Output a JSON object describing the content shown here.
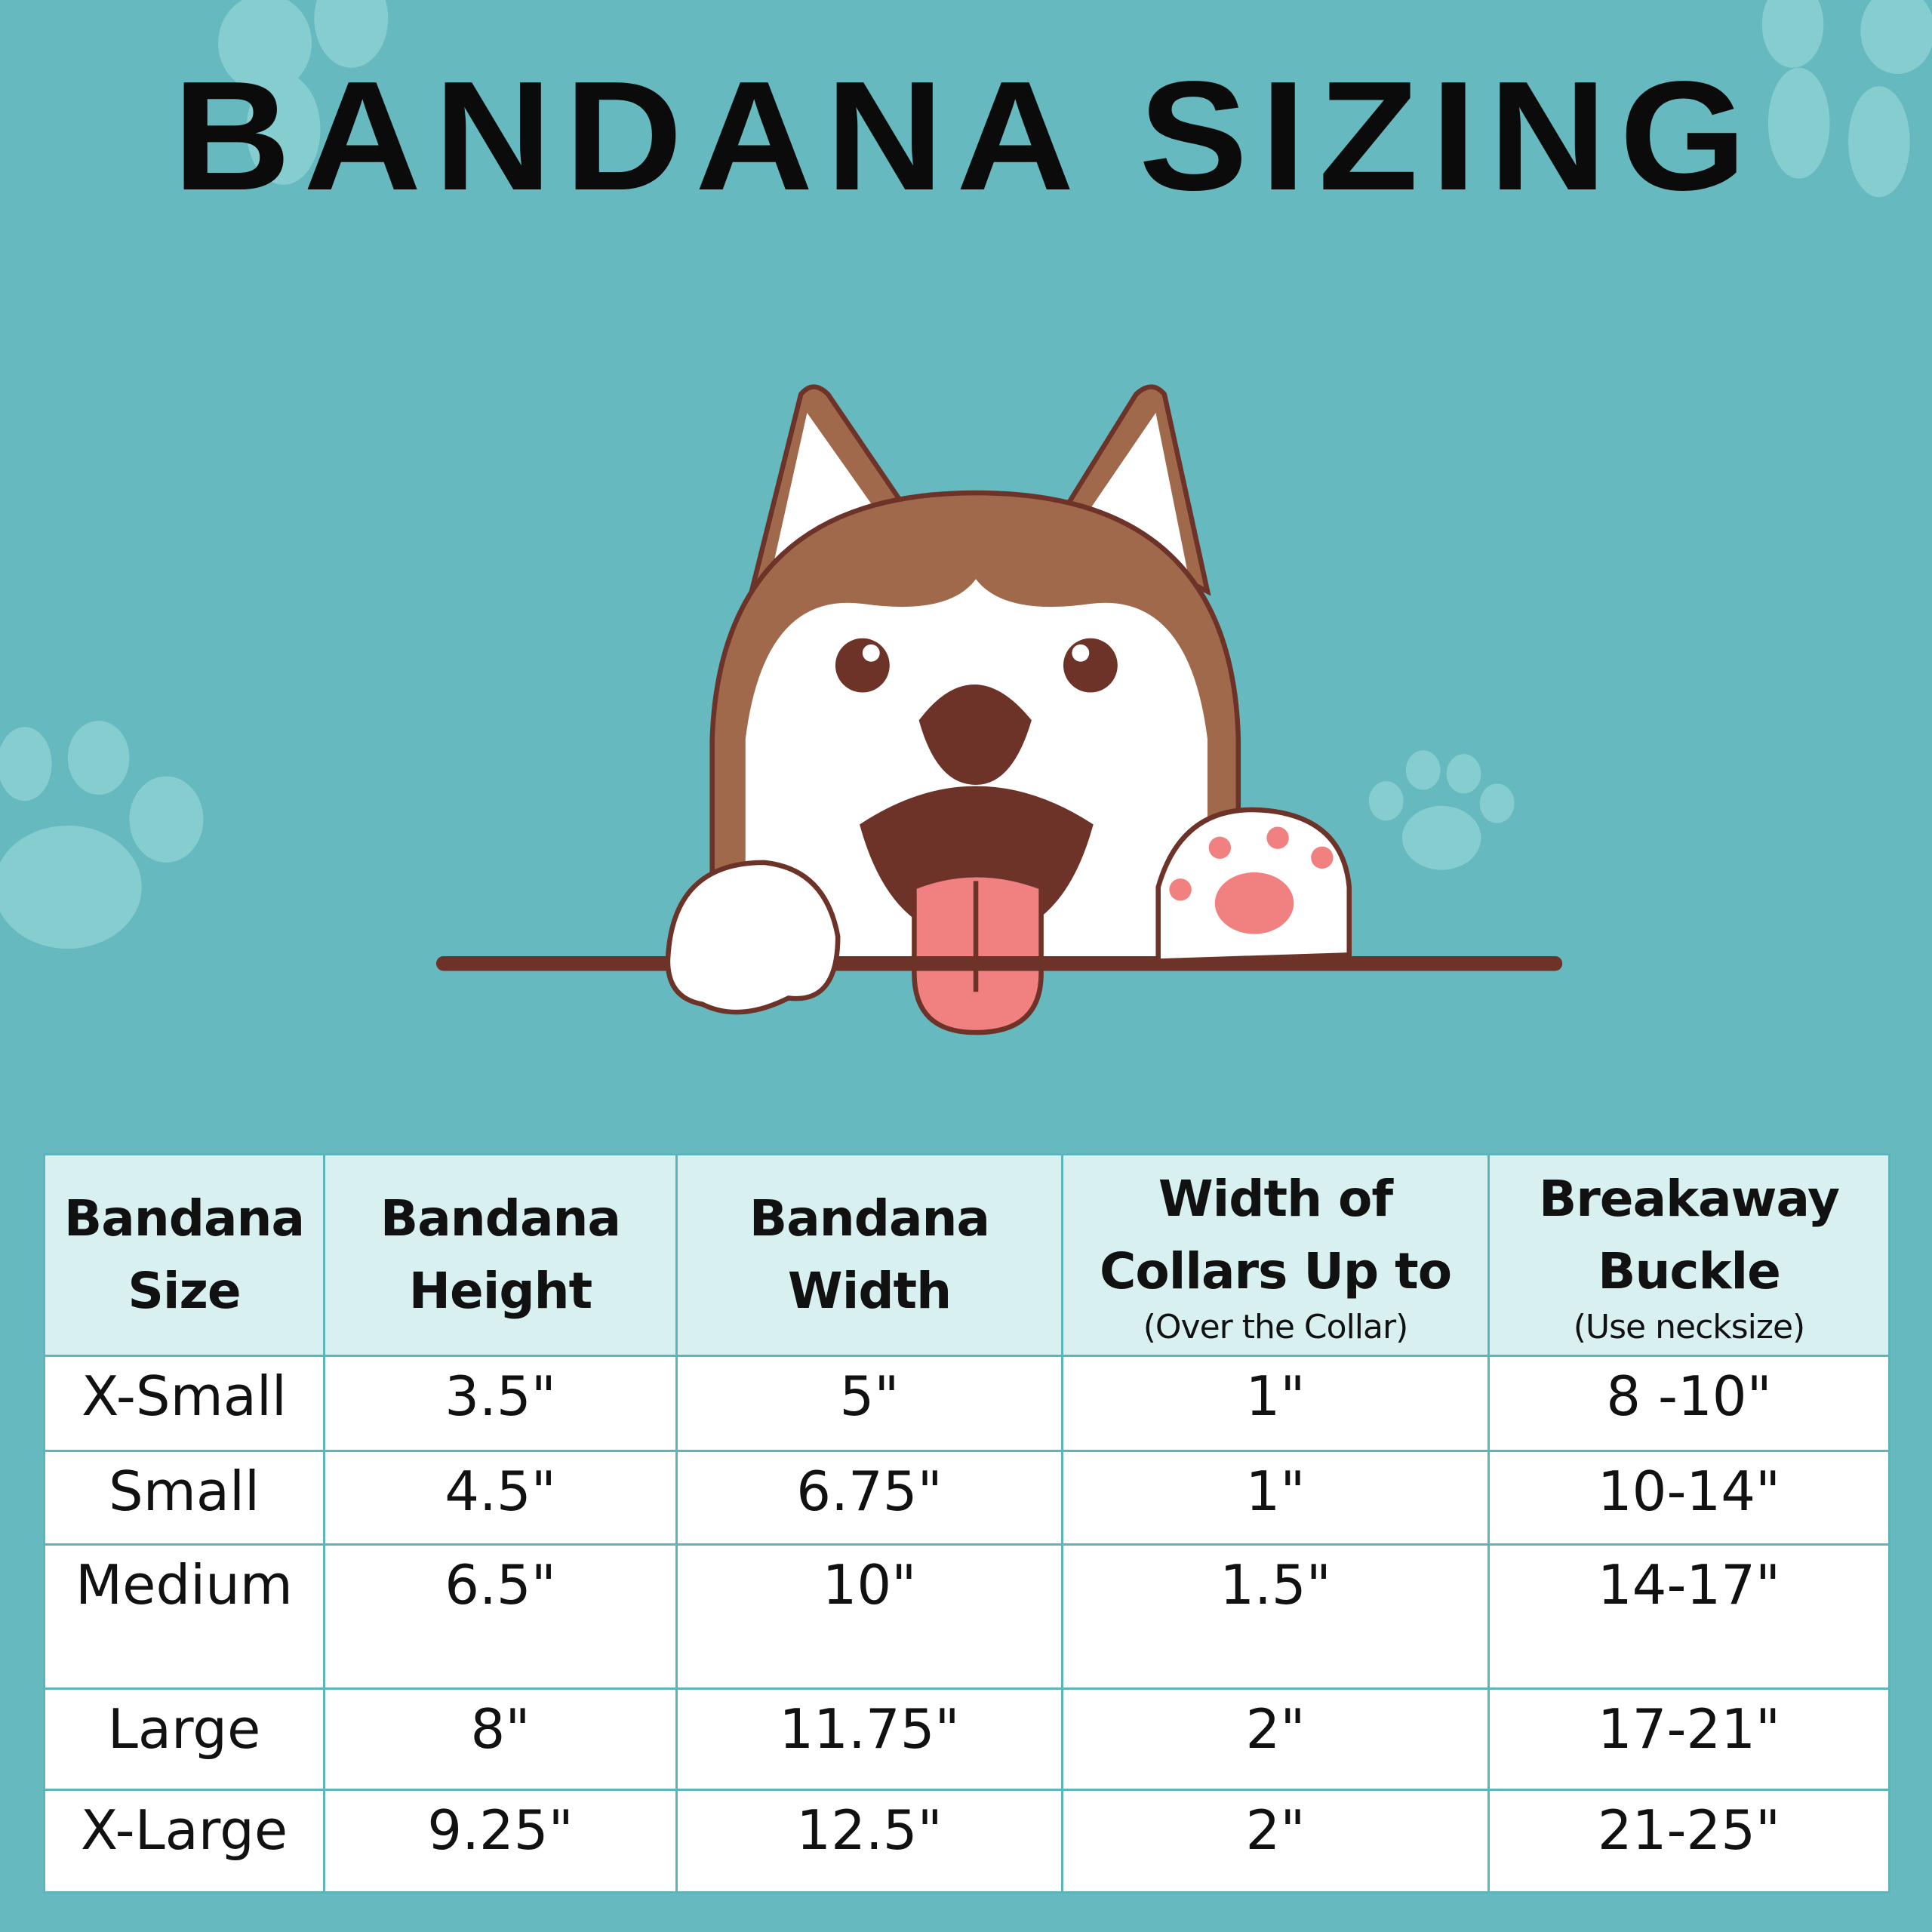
{
  "title": "BANDANA SIZING",
  "colors": {
    "background": "#66babf",
    "header_fill": "#d8f0f0",
    "grid": "#5bb5bb",
    "dog_brown": "#a0694b",
    "outline": "#6e3328",
    "tongue": "#f18080"
  },
  "illustration": "peeking-husky-dog",
  "table": {
    "headers": [
      {
        "label": "Bandana Size",
        "sub": ""
      },
      {
        "label": "Bandana Height",
        "sub": ""
      },
      {
        "label": "Bandana Width",
        "sub": ""
      },
      {
        "label": "Width of Collars Up to",
        "sub": "(Over the Collar)"
      },
      {
        "label": "Breakaway Buckle",
        "sub": "(Use necksize)"
      }
    ],
    "rows": [
      [
        "X-Small",
        "3.5\"",
        "5\"",
        "1\"",
        "8 -10\""
      ],
      [
        "Small",
        "4.5\"",
        "6.75\"",
        "1\"",
        "10-14\""
      ],
      [
        "Medium",
        "6.5\"",
        "10\"",
        "1.5\"",
        "14-17\""
      ],
      [
        "Large",
        "8\"",
        "11.75\"",
        "2\"",
        "17-21\""
      ],
      [
        "X-Large",
        "9.25\"",
        "12.5\"",
        "2\"",
        "21-25\""
      ]
    ]
  }
}
